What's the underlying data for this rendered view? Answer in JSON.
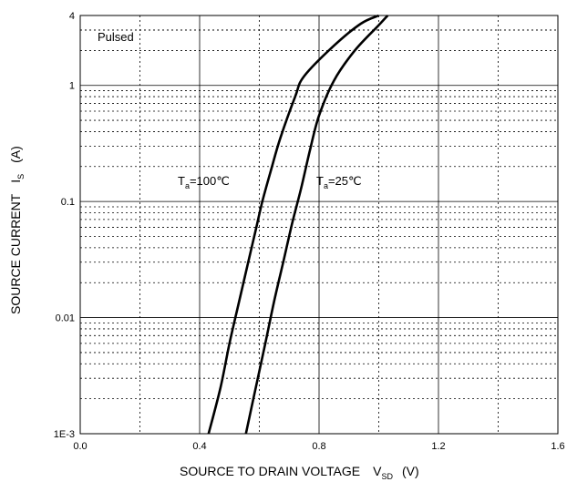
{
  "chart_data": {
    "type": "line",
    "annotation_pulsed": "Pulsed",
    "xlabel": {
      "main": "SOURCE TO DRAIN VOLTAGE",
      "symbol": "V",
      "subscript": "SD",
      "unit": "(V)"
    },
    "ylabel": {
      "main": "SOURCE CURRENT",
      "symbol": "I",
      "subscript": "S",
      "unit": "(A)"
    },
    "xlim": [
      0.0,
      1.6
    ],
    "ylim": [
      0.001,
      4
    ],
    "yscale": "log",
    "grid": true,
    "x_ticks": [
      "0.0",
      "0.4",
      "0.8",
      "1.2",
      "1.6"
    ],
    "y_ticks": [
      "1E-3",
      "0.01",
      "0.1",
      "1",
      "4"
    ],
    "series": [
      {
        "name": "Ta=100℃",
        "label_parts": {
          "symbol": "T",
          "subscript": "a",
          "value": "=100℃"
        },
        "color": "#000000",
        "x": [
          0.43,
          0.47,
          0.5,
          0.53,
          0.56,
          0.59,
          0.61,
          0.64,
          0.67,
          0.72,
          0.75,
          0.85,
          0.94,
          1.0
        ],
        "y": [
          0.001,
          0.0025,
          0.006,
          0.013,
          0.028,
          0.06,
          0.1,
          0.19,
          0.35,
          0.8,
          1.2,
          2.2,
          3.4,
          4.0
        ]
      },
      {
        "name": "Ta=25℃",
        "label_parts": {
          "symbol": "T",
          "subscript": "a",
          "value": "=25℃"
        },
        "color": "#000000",
        "x": [
          0.555,
          0.58,
          0.62,
          0.65,
          0.68,
          0.71,
          0.74,
          0.77,
          0.8,
          0.85,
          0.92,
          1.0,
          1.03
        ],
        "y": [
          0.001,
          0.002,
          0.006,
          0.014,
          0.03,
          0.065,
          0.13,
          0.28,
          0.55,
          1.1,
          2.0,
          3.3,
          4.0
        ]
      }
    ]
  }
}
